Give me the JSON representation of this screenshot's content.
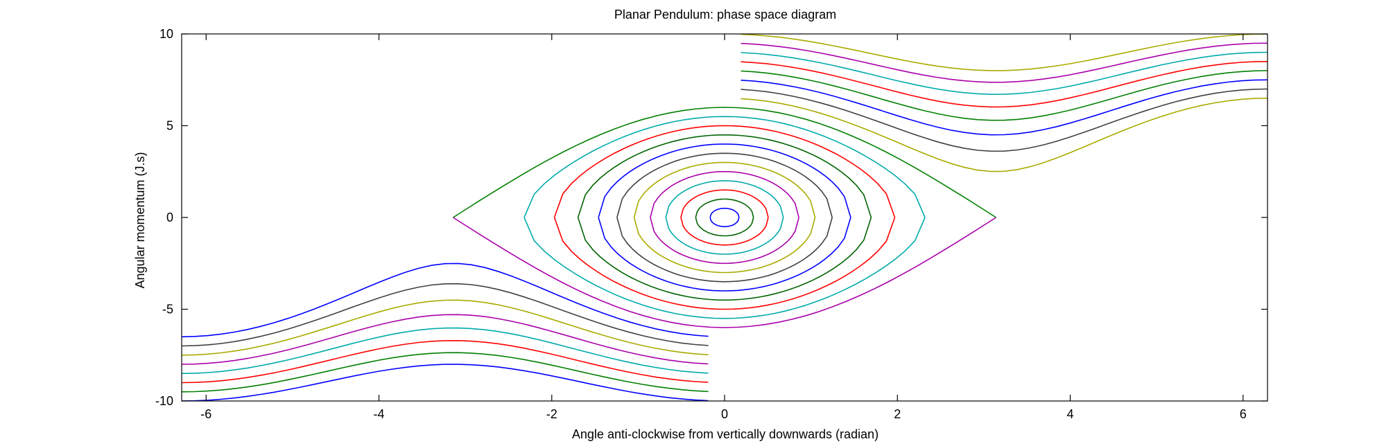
{
  "chart_data": {
    "type": "line",
    "title": "Planar Pendulum: phase space diagram",
    "xlabel": "Angle anti-clockwise from vertically downwards (radian)",
    "ylabel": "Angular momentum (J.s)",
    "xlim": [
      -6.283,
      6.283
    ],
    "ylim": [
      -10,
      10
    ],
    "xticks": [
      -6,
      -4,
      -2,
      0,
      2,
      4,
      6
    ],
    "yticks": [
      -10,
      -5,
      0,
      5,
      10
    ],
    "xtick_labels": [
      "-6",
      "-4",
      "-2",
      "0",
      "2",
      "4",
      "6"
    ],
    "ytick_labels": [
      "-10",
      "-5",
      "0",
      "5",
      "10"
    ],
    "grid": false,
    "model": {
      "closed_orbits_peak_momentum": [
        0.5,
        1.0,
        1.5,
        2.0,
        2.5,
        3.0,
        3.5,
        4.0,
        4.5,
        5.0,
        5.5,
        6.0
      ],
      "closed_orbit_colors": [
        "#0000ff",
        "#006400",
        "#ff0000",
        "#00aaaa",
        "#aa00aa",
        "#aaaa00",
        "#404040",
        "#0000ff",
        "#006400",
        "#ff0000",
        "#00aaaa",
        "#008000"
      ],
      "closed_orbit_lower_colors": [
        "#0000ff",
        "#006400",
        "#ff0000",
        "#00aaaa",
        "#aa00aa",
        "#aaaa00",
        "#404040",
        "#0000ff",
        "#006400",
        "#ff0000",
        "#00aaaa",
        "#aa00aa"
      ],
      "rotating_bottom_momentum_at_0": [
        6.5,
        7.0,
        7.5,
        8.0,
        8.5,
        9.0,
        9.5,
        10.0
      ],
      "rotating_colors": [
        "#0000ff",
        "#404040",
        "#aaaa00",
        "#aa00aa",
        "#00aaaa",
        "#ff0000",
        "#008000",
        "#0000ff"
      ],
      "rotating_top_momentum_at_2pi": [
        6.5,
        7.0,
        7.5,
        8.0,
        8.5,
        9.0,
        9.5,
        10.0
      ],
      "rotating_top_colors": [
        "#aaaa00",
        "#404040",
        "#0000ff",
        "#008000",
        "#ff0000",
        "#00aaaa",
        "#aa00aa",
        "#aaaa00"
      ],
      "max_momentum_squared_coeff": 9
    }
  }
}
